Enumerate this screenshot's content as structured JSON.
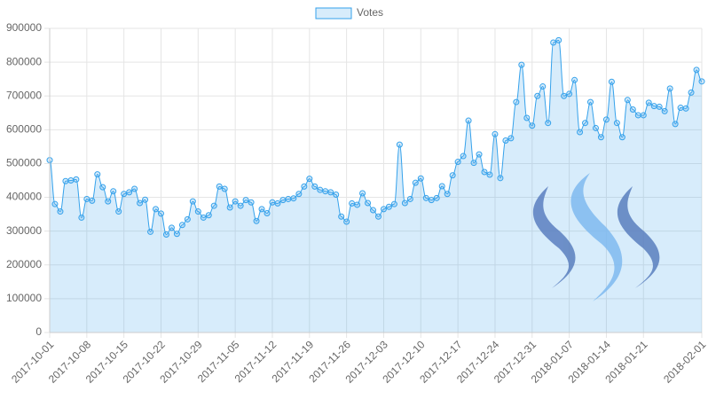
{
  "chart_data": {
    "type": "line",
    "legend": "top",
    "grid": true,
    "series": [
      {
        "name": "Votes",
        "color": "#36a2eb",
        "fill": "rgba(54,162,235,0.2)",
        "values": [
          510000,
          380000,
          358000,
          448000,
          450000,
          453000,
          340000,
          395000,
          390000,
          468000,
          430000,
          388000,
          418000,
          358000,
          410000,
          415000,
          425000,
          383000,
          393000,
          298000,
          365000,
          352000,
          290000,
          310000,
          292000,
          318000,
          335000,
          388000,
          358000,
          340000,
          347000,
          375000,
          432000,
          425000,
          370000,
          388000,
          375000,
          392000,
          385000,
          330000,
          365000,
          353000,
          385000,
          382000,
          392000,
          395000,
          397000,
          410000,
          432000,
          455000,
          432000,
          422000,
          418000,
          415000,
          408000,
          343000,
          328000,
          382000,
          378000,
          412000,
          383000,
          362000,
          343000,
          365000,
          372000,
          380000,
          556000,
          383000,
          395000,
          443000,
          456000,
          398000,
          392000,
          398000,
          433000,
          410000,
          465000,
          505000,
          522000,
          627000,
          502000,
          527000,
          475000,
          467000,
          587000,
          457000,
          568000,
          575000,
          682000,
          792000,
          635000,
          612000,
          700000,
          728000,
          620000,
          858000,
          865000,
          700000,
          706000,
          747000,
          593000,
          620000,
          682000,
          605000,
          578000,
          630000,
          742000,
          620000,
          578000,
          688000,
          660000,
          643000,
          643000,
          680000,
          670000,
          668000,
          655000,
          722000,
          617000,
          665000,
          663000,
          710000,
          777000,
          743000
        ]
      }
    ],
    "x": [
      "2017-10-01",
      "2017-10-02",
      "2017-10-03",
      "2017-10-04",
      "2017-10-05",
      "2017-10-06",
      "2017-10-07",
      "2017-10-08",
      "2017-10-09",
      "2017-10-10",
      "2017-10-11",
      "2017-10-12",
      "2017-10-13",
      "2017-10-14",
      "2017-10-15",
      "2017-10-16",
      "2017-10-17",
      "2017-10-18",
      "2017-10-19",
      "2017-10-20",
      "2017-10-21",
      "2017-10-22",
      "2017-10-23",
      "2017-10-24",
      "2017-10-25",
      "2017-10-26",
      "2017-10-27",
      "2017-10-28",
      "2017-10-29",
      "2017-10-30",
      "2017-10-31",
      "2017-11-01",
      "2017-11-02",
      "2017-11-03",
      "2017-11-04",
      "2017-11-05",
      "2017-11-06",
      "2017-11-07",
      "2017-11-08",
      "2017-11-09",
      "2017-11-10",
      "2017-11-11",
      "2017-11-12",
      "2017-11-13",
      "2017-11-14",
      "2017-11-15",
      "2017-11-16",
      "2017-11-17",
      "2017-11-18",
      "2017-11-19",
      "2017-11-20",
      "2017-11-21",
      "2017-11-22",
      "2017-11-23",
      "2017-11-24",
      "2017-11-25",
      "2017-11-26",
      "2017-11-27",
      "2017-11-28",
      "2017-11-29",
      "2017-11-30",
      "2017-12-01",
      "2017-12-02",
      "2017-12-03",
      "2017-12-04",
      "2017-12-05",
      "2017-12-06",
      "2017-12-07",
      "2017-12-08",
      "2017-12-09",
      "2017-12-10",
      "2017-12-11",
      "2017-12-12",
      "2017-12-13",
      "2017-12-14",
      "2017-12-15",
      "2017-12-16",
      "2017-12-17",
      "2017-12-18",
      "2017-12-19",
      "2017-12-20",
      "2017-12-21",
      "2017-12-22",
      "2017-12-23",
      "2017-12-24",
      "2017-12-25",
      "2017-12-26",
      "2017-12-27",
      "2017-12-28",
      "2017-12-29",
      "2017-12-30",
      "2017-12-31",
      "2018-01-01",
      "2018-01-02",
      "2018-01-03",
      "2018-01-04",
      "2018-01-05",
      "2018-01-06",
      "2018-01-07",
      "2018-01-08",
      "2018-01-09",
      "2018-01-10",
      "2018-01-11",
      "2018-01-12",
      "2018-01-13",
      "2018-01-14",
      "2018-01-15",
      "2018-01-16",
      "2018-01-17",
      "2018-01-18",
      "2018-01-19",
      "2018-01-20",
      "2018-01-21",
      "2018-01-22",
      "2018-01-23",
      "2018-01-24",
      "2018-01-25",
      "2018-01-26",
      "2018-01-27",
      "2018-01-28",
      "2018-01-29",
      "2018-01-30",
      "2018-01-31",
      "2018-02-01"
    ],
    "xlim": [
      "2017-10-01",
      "2018-02-01"
    ],
    "xticks": [
      "2017-10-01",
      "2017-10-08",
      "2017-10-15",
      "2017-10-22",
      "2017-10-29",
      "2017-11-05",
      "2017-11-12",
      "2017-11-19",
      "2017-11-26",
      "2017-12-03",
      "2017-12-10",
      "2017-12-17",
      "2017-12-24",
      "2017-12-31",
      "2018-01-07",
      "2018-01-14",
      "2018-01-21",
      "2018-02-01"
    ],
    "ylim": [
      0,
      900000
    ],
    "yticks": [
      0,
      100000,
      200000,
      300000,
      400000,
      500000,
      600000,
      700000,
      800000,
      900000
    ]
  }
}
